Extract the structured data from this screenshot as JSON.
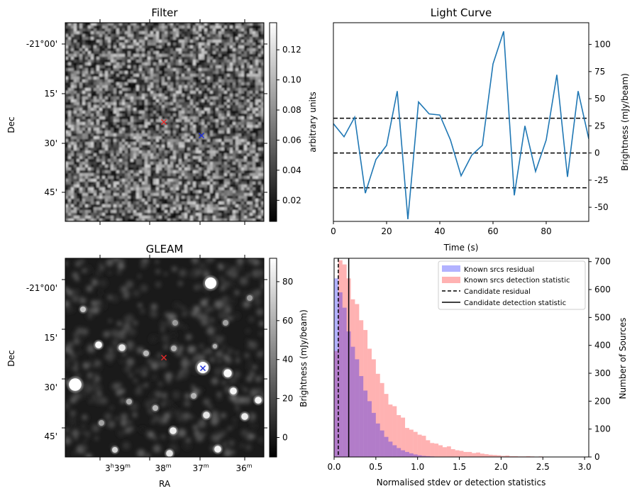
{
  "chart_data": [
    {
      "panel": "filter",
      "type": "heatmap",
      "title": "Filter",
      "xlabel": "",
      "ylabel": "Dec",
      "yticks": [
        "-21°00'",
        "15'",
        "30'",
        "45'"
      ],
      "colorbar": {
        "label": "arbitrary units",
        "ticks": [
          0.02,
          0.04,
          0.06,
          0.08,
          0.1,
          0.12
        ],
        "tick_labels": [
          "0.02",
          "0.04",
          "0.06",
          "0.08",
          "0.10",
          "0.12"
        ],
        "range": [
          0.006,
          0.138
        ],
        "cmap": "gray"
      },
      "markers": [
        {
          "color": "#e32a2a",
          "symbol": "x"
        },
        {
          "color": "#1f2fd8",
          "symbol": "x"
        }
      ]
    },
    {
      "panel": "light_curve",
      "type": "line",
      "title": "Light Curve",
      "xlabel": "Time (s)",
      "ylabel": "Brightness (mJy/beam)",
      "xlim": [
        0,
        96
      ],
      "ylim": [
        -63,
        120
      ],
      "xticks": [
        0,
        20,
        40,
        60,
        80
      ],
      "yticks": [
        -50,
        -25,
        0,
        25,
        50,
        75,
        100
      ],
      "series": [
        {
          "color": "#1f77b4",
          "x": [
            0,
            4,
            8,
            12,
            16,
            20,
            24,
            28,
            32,
            36,
            40,
            44,
            48,
            52,
            56,
            60,
            64,
            68,
            72,
            76,
            80,
            84,
            88,
            92,
            96
          ],
          "y": [
            27,
            15,
            33,
            -37,
            -6,
            7,
            57,
            -61,
            47,
            36,
            35,
            12,
            -21,
            -2,
            7,
            82,
            112,
            -39,
            25,
            -17,
            12,
            72,
            -22,
            57,
            13
          ]
        }
      ],
      "hlines": [
        {
          "y": 32,
          "style": "dashed"
        },
        {
          "y": 0,
          "style": "dashed"
        },
        {
          "y": -32,
          "style": "dashed"
        }
      ]
    },
    {
      "panel": "gleam",
      "type": "heatmap",
      "title": "GLEAM",
      "xlabel": "RA",
      "ylabel": "Dec",
      "xticks": [
        {
          "h": "3",
          "hs": "h",
          "m": "39",
          "ms": "m"
        },
        {
          "h": "",
          "hs": "",
          "m": "38",
          "ms": "m"
        },
        {
          "h": "",
          "hs": "",
          "m": "37",
          "ms": "m"
        },
        {
          "h": "",
          "hs": "",
          "m": "36",
          "ms": "m"
        }
      ],
      "yticks": [
        "-21°00'",
        "15'",
        "30'",
        "45'"
      ],
      "colorbar": {
        "label": "Brightness (mJy/beam)",
        "ticks": [
          0,
          20,
          40,
          60,
          80
        ],
        "tick_labels": [
          "0",
          "20",
          "40",
          "60",
          "80"
        ],
        "range": [
          -10,
          92
        ],
        "cmap": "gray"
      },
      "markers": [
        {
          "color": "#e32a2a",
          "symbol": "x"
        },
        {
          "color": "#1f2fd8",
          "symbol": "x"
        }
      ]
    },
    {
      "panel": "histogram",
      "type": "bar",
      "xlabel": "Normalised stdev or detection statistics",
      "ylabel": "Number of Sources",
      "xlim": [
        0,
        3.05
      ],
      "ylim": [
        0,
        712
      ],
      "xticks": [
        0.0,
        0.5,
        1.0,
        1.5,
        2.0,
        2.5,
        3.0
      ],
      "xtick_labels": [
        "0.0",
        "0.5",
        "1.0",
        "1.5",
        "2.0",
        "2.5",
        "3.0"
      ],
      "yticks": [
        0,
        100,
        200,
        300,
        400,
        500,
        600,
        700
      ],
      "bin_width": 0.05,
      "legend_position": "upper right",
      "series": [
        {
          "name": "Known srcs residual",
          "color": "#0000ff",
          "opacity": 0.3,
          "values": [
            640,
            590,
            535,
            450,
            395,
            350,
            290,
            238,
            200,
            158,
            120,
            95,
            72,
            55,
            42,
            32,
            24,
            18,
            13,
            9,
            6,
            4,
            3,
            2,
            1,
            1,
            1,
            0,
            0,
            0
          ]
        },
        {
          "name": "Known srcs detection statistic",
          "color": "#ff0000",
          "opacity": 0.3,
          "values": [
            380,
            705,
            690,
            640,
            565,
            548,
            490,
            455,
            388,
            350,
            298,
            265,
            226,
            188,
            182,
            150,
            141,
            104,
            98,
            90,
            80,
            76,
            60,
            50,
            48,
            42,
            35,
            38,
            28,
            24,
            22,
            18,
            18,
            14,
            16,
            12,
            10,
            8,
            7,
            6,
            4,
            5,
            3,
            3,
            2,
            2,
            3,
            2,
            1,
            2,
            1,
            1,
            1,
            1,
            1,
            0,
            1,
            0,
            1,
            0
          ]
        }
      ],
      "vlines": [
        {
          "name": "Candidate residual",
          "x": 0.05,
          "style": "dashed"
        },
        {
          "name": "Candidate detection statistic",
          "x": 0.175,
          "style": "solid"
        }
      ]
    }
  ]
}
